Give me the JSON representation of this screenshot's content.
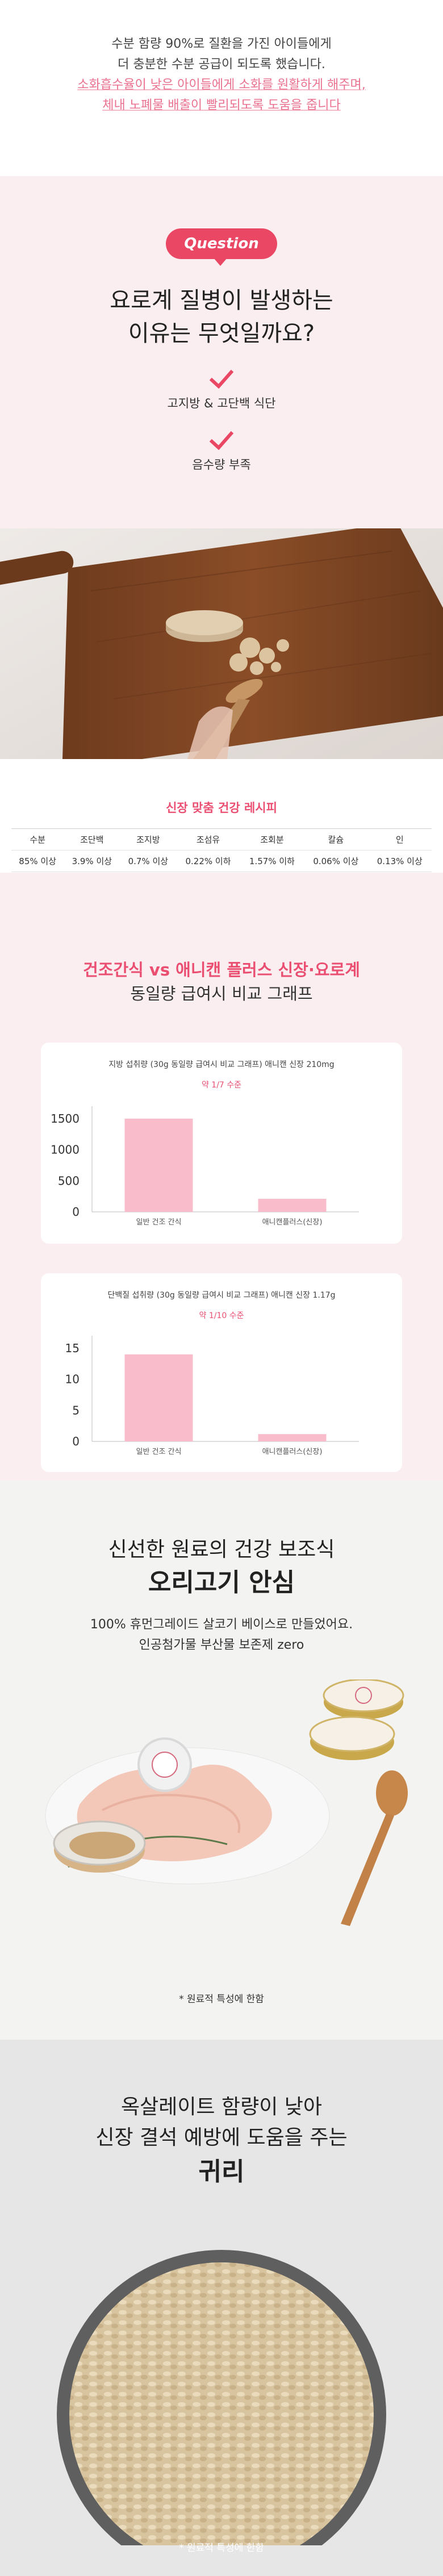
{
  "intro": {
    "line1": "수분 함량 90%로 질환을 가진 아이들에게",
    "line2": "더 충분한 수분 공급이 되도록 했습니다.",
    "line3": "소화흡수율이 낮은 아이들에게 소화를 원활하게 해주며,",
    "line4": "체내 노폐물 배출이 빨리되도록 도움을 줍니다"
  },
  "question": {
    "badge": "Question",
    "title_line1": "요로계 질병이 발생하는",
    "title_line2": "이유는 무엇일까요?",
    "reasons": [
      "고지방 & 고단백 식단",
      "음수량 부족"
    ],
    "accent_color": "#e94764"
  },
  "recipe": {
    "title": "신장 맞춤 건강 레시피",
    "headers": [
      "수분",
      "조단백",
      "조지방",
      "조섬유",
      "조회분",
      "칼슘",
      "인"
    ],
    "values": [
      "85% 이상",
      "3.9% 이상",
      "0.7% 이상",
      "0.22% 이하",
      "1.57% 이하",
      "0.06% 이상",
      "0.13% 이상"
    ]
  },
  "graphs": {
    "title_em": "건조간식 vs 애니캔 플러스 신장·요로계",
    "title_line2": "동일량 급여시 비교 그래프",
    "bar_color": "#f8bccb",
    "chart_data": [
      {
        "type": "bar",
        "title": "지방 섭취량 (30g 동일량 급여시 비교 그래프) 애니캔 신장 210mg",
        "subtitle": "약 1/7 수준",
        "categories": [
          "일반 건조 간식",
          "애니캔플러스(신장)"
        ],
        "values": [
          1500,
          210
        ],
        "ylim": [
          0,
          1700
        ],
        "yticks": [
          0,
          500,
          1000,
          1500
        ],
        "grid": false
      },
      {
        "type": "bar",
        "title": "단백질 섭취량 (30g 동일량 급여시 비교 그래프) 애니캔 신장 1.17g",
        "subtitle": "약 1/10 수준",
        "categories": [
          "일반 건조 간식",
          "애니캔플러스(신장)"
        ],
        "values": [
          14,
          1.17
        ],
        "ylim": [
          0,
          17
        ],
        "yticks": [
          0,
          5,
          10,
          15
        ],
        "grid": false
      }
    ]
  },
  "duck": {
    "title_line1": "신선한 원료의 건강 보조식",
    "title_line2": "오리고기 안심",
    "desc_line1": "100% 휴먼그레이드 살코기 베이스로 만들었어요.",
    "desc_line2": "인공첨가물 부산물 보존제 zero",
    "note": "* 원료적 특성에 한함"
  },
  "oat": {
    "title_line1": "옥살레이트 함량이 낮아",
    "title_line2": "신장 결석 예방에 도움을 주는",
    "title_line3": "귀리",
    "note": "* 원료적 특성에 한함"
  }
}
